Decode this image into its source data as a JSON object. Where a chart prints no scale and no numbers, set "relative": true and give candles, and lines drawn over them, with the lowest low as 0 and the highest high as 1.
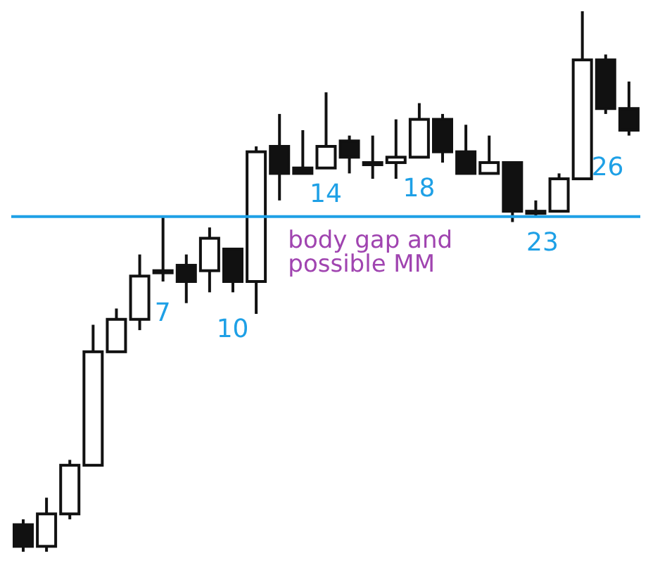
{
  "chart_data": {
    "type": "candlestick",
    "relative": true,
    "categories": [
      null,
      null,
      null,
      null,
      null,
      null,
      null,
      null,
      null,
      null,
      null,
      null,
      null,
      null,
      null,
      null,
      null,
      null,
      null,
      null,
      null,
      null,
      null,
      null,
      null,
      null,
      null
    ],
    "ohlc": [
      [
        0.05,
        0.06,
        0,
        0.01
      ],
      [
        0.01,
        0.1,
        0,
        0.07
      ],
      [
        0.07,
        0.17,
        0.06,
        0.16
      ],
      [
        0.16,
        0.42,
        0.16,
        0.37
      ],
      [
        0.37,
        0.45,
        0.37,
        0.43
      ],
      [
        0.43,
        0.55,
        0.41,
        0.51
      ],
      [
        0.52,
        0.62,
        0.5,
        0.52
      ],
      [
        0.53,
        0.55,
        0.46,
        0.5
      ],
      [
        0.52,
        0.6,
        0.48,
        0.58
      ],
      [
        0.56,
        0.56,
        0.48,
        0.5
      ],
      [
        0.5,
        0.75,
        0.44,
        0.74
      ],
      [
        0.75,
        0.81,
        0.65,
        0.7
      ],
      [
        0.71,
        0.78,
        0.7,
        0.7
      ],
      [
        0.71,
        0.85,
        0.71,
        0.75
      ],
      [
        0.76,
        0.77,
        0.7,
        0.73
      ],
      [
        0.72,
        0.77,
        0.69,
        0.72
      ],
      [
        0.72,
        0.8,
        0.69,
        0.73
      ],
      [
        0.73,
        0.83,
        0.73,
        0.8
      ],
      [
        0.8,
        0.81,
        0.72,
        0.74
      ],
      [
        0.74,
        0.79,
        0.7,
        0.7
      ],
      [
        0.7,
        0.77,
        0.7,
        0.72
      ],
      [
        0.72,
        0.72,
        0.61,
        0.63
      ],
      [
        0.63,
        0.65,
        0.62,
        0.63
      ],
      [
        0.63,
        0.7,
        0.63,
        0.69
      ],
      [
        0.69,
        1,
        0.69,
        0.91
      ],
      [
        0.91,
        0.92,
        0.81,
        0.82
      ],
      [
        0.82,
        0.87,
        0.77,
        0.78
      ]
    ],
    "ref_lines": [
      {
        "axis": "y",
        "value": 0.62,
        "label": "body gap and possible MM",
        "color": "#1ea0e6"
      }
    ],
    "annotations": [
      "7",
      "10",
      "14",
      "18",
      "23",
      "26"
    ]
  }
}
